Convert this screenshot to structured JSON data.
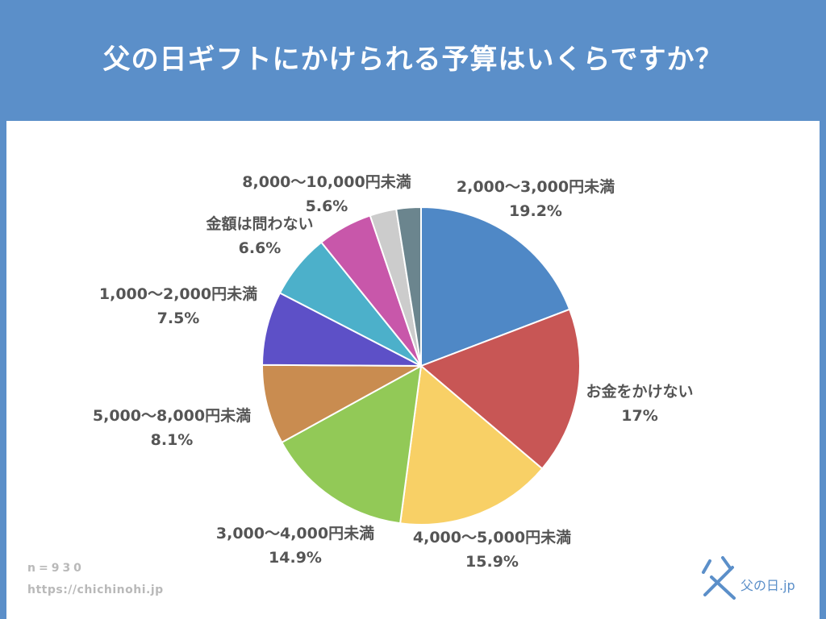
{
  "title": "父の日ギフトにかけられる予算はいくらですか？",
  "footer": {
    "n_label": "n=930",
    "url": "https://chichinohi.jp"
  },
  "logo": {
    "text_main": "父の日",
    "text_suffix": ".jp"
  },
  "colors": {
    "background": "#5b8fc9",
    "panel": "#ffffff",
    "label_text": "#555555"
  },
  "chart_data": {
    "type": "pie",
    "labels": [
      "2,000〜3,000円未満",
      "お金をかけない",
      "4,000〜5,000円未満",
      "3,000〜4,000円未満",
      "5,000〜8,000円未満",
      "1,000〜2,000円未満",
      "金額は問わない",
      "8,000〜10,000円未満",
      "",
      ""
    ],
    "values": [
      19.2,
      17,
      15.9,
      14.9,
      8.1,
      7.5,
      6.6,
      5.6,
      2.7,
      2.5
    ],
    "value_labels": [
      "19.2%",
      "17%",
      "15.9%",
      "14.9%",
      "8.1%",
      "7.5%",
      "6.6%",
      "5.6%",
      "",
      ""
    ],
    "colors": [
      "#4f88c6",
      "#c85655",
      "#f8d066",
      "#92c957",
      "#c98c50",
      "#5d50c7",
      "#4cb0ca",
      "#c857aa",
      "#cccccc",
      "#6b858e"
    ],
    "start": "12 o'clock",
    "direction": "clockwise"
  }
}
